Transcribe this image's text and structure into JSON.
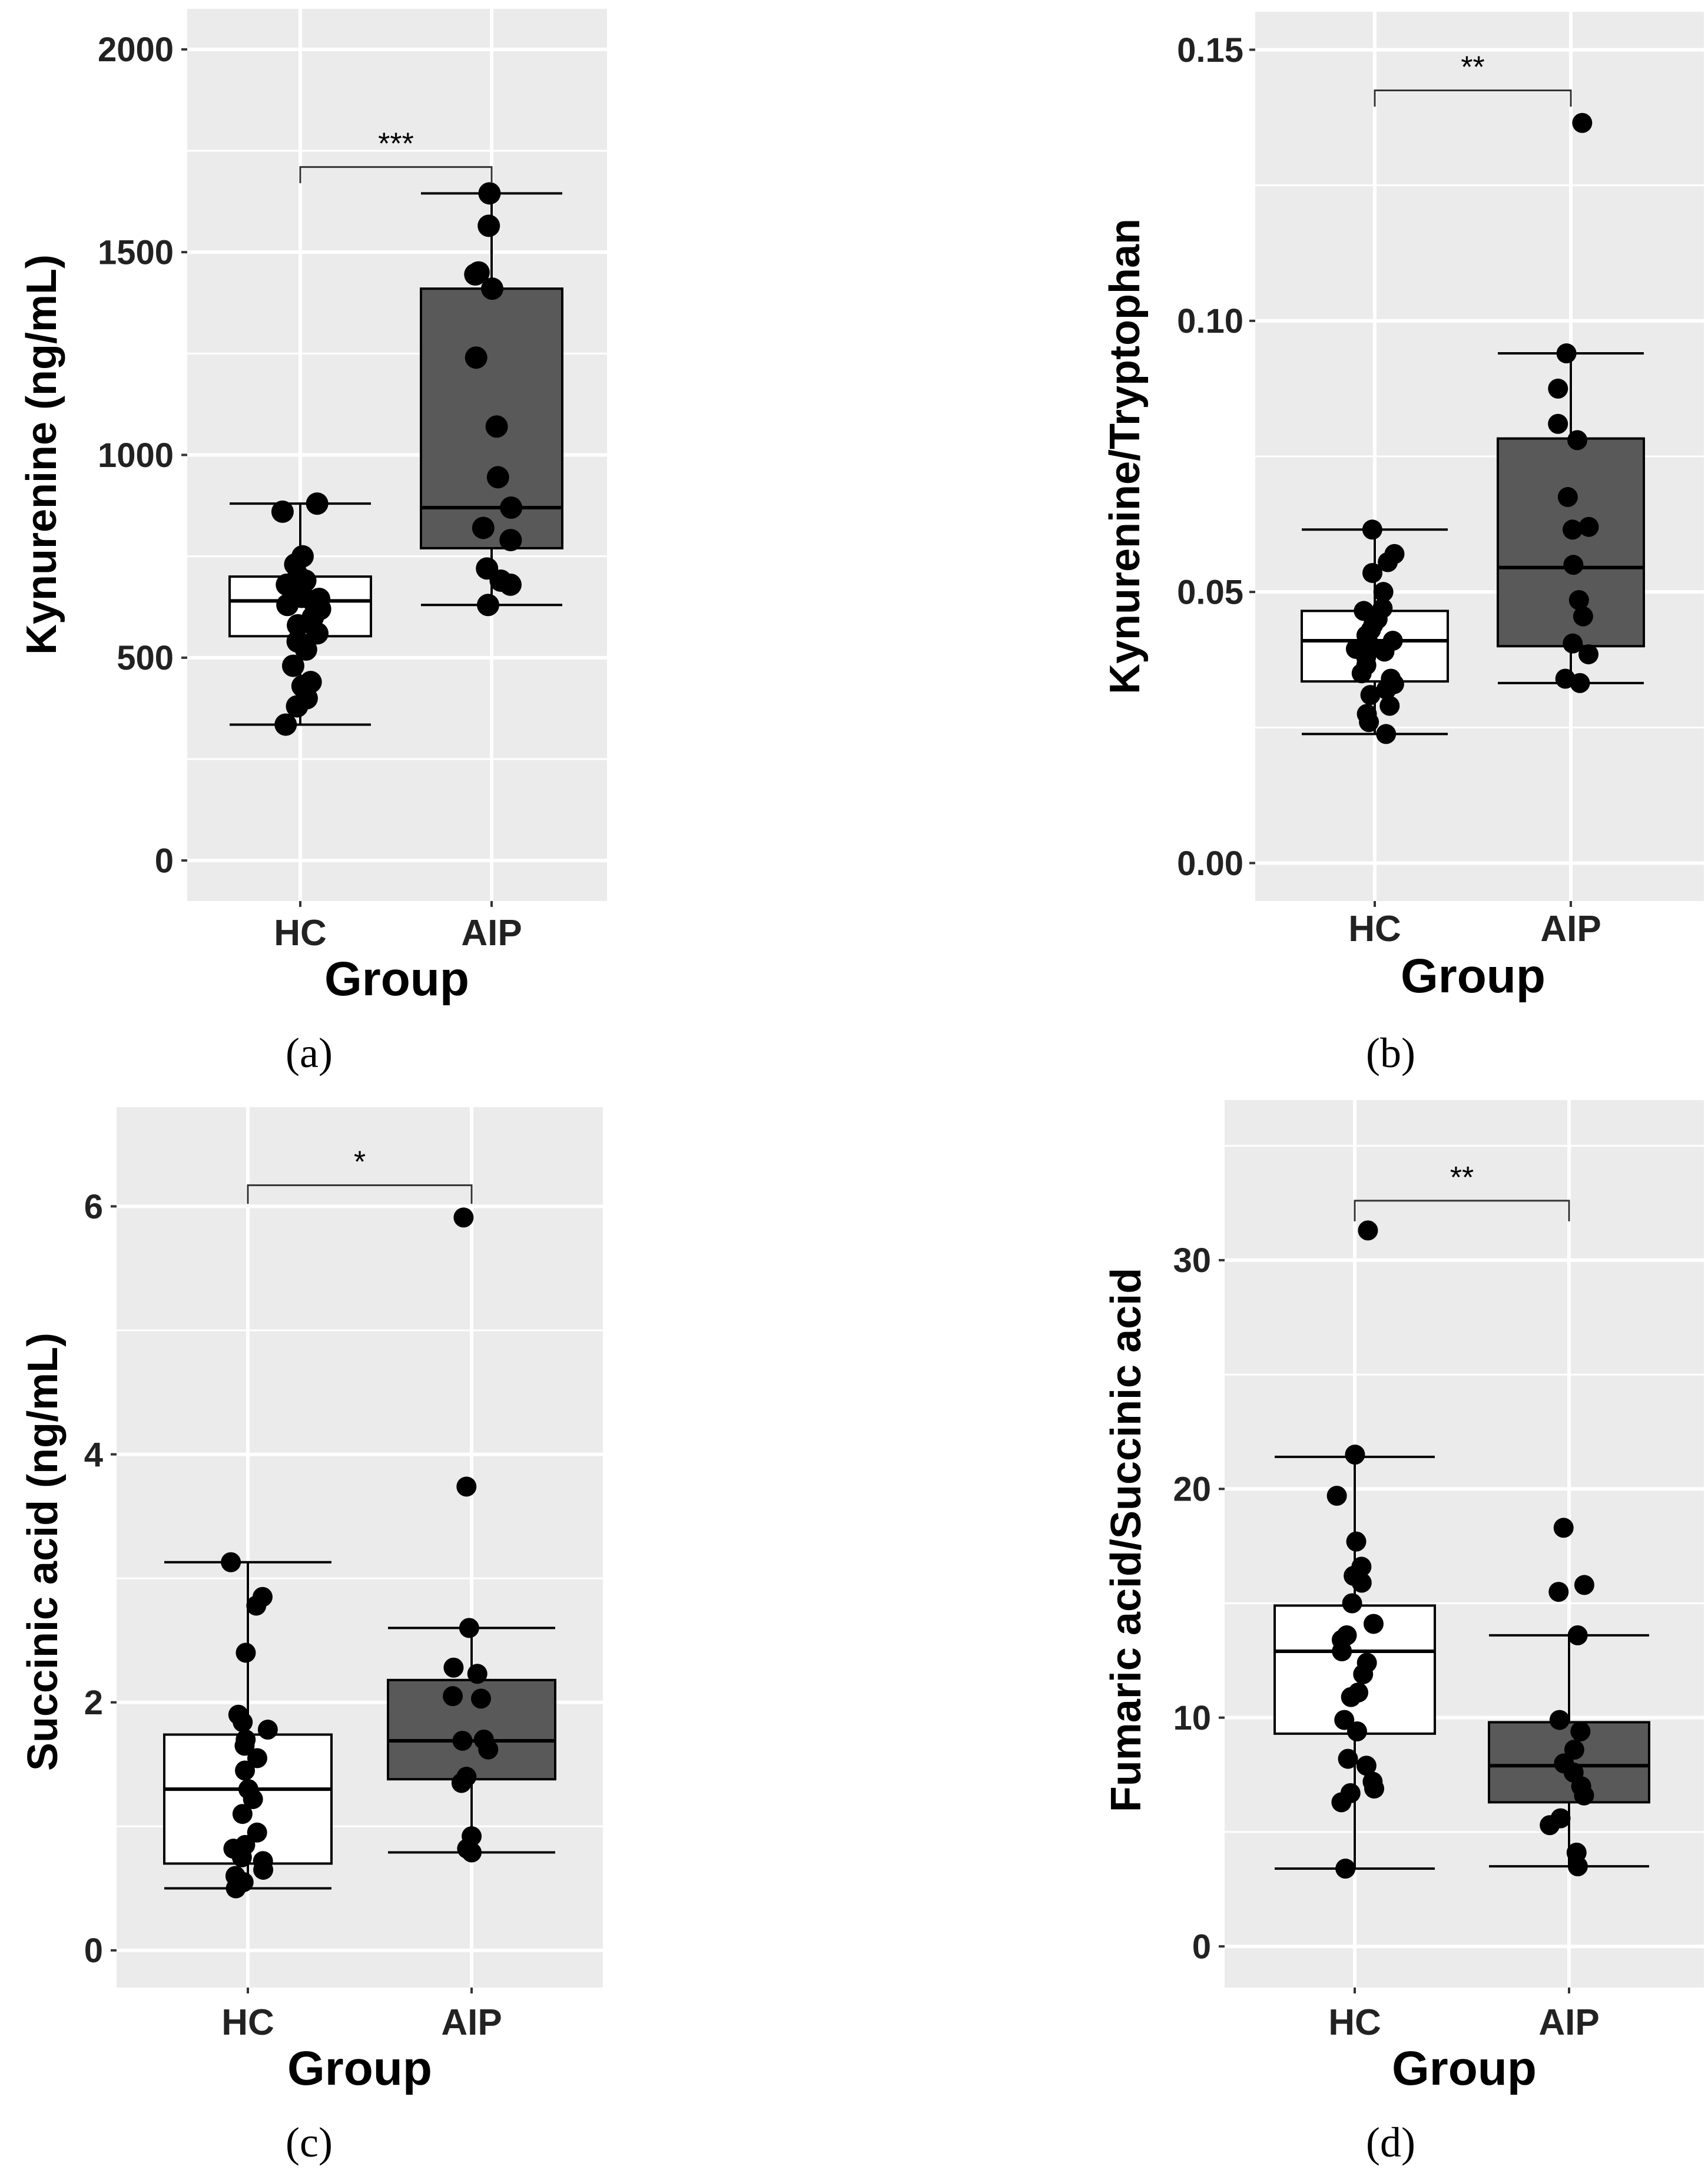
{
  "figure": {
    "panels": [
      {
        "caption": "(a)"
      },
      {
        "caption": "(b)"
      },
      {
        "caption": "(c)"
      },
      {
        "caption": "(d)"
      }
    ]
  },
  "chart_data": [
    {
      "type": "boxplot",
      "panel": "(a)",
      "title": "",
      "xlabel": "Group",
      "ylabel": "Kynurenine (ng/mL)",
      "categories": [
        "HC",
        "AIP"
      ],
      "ylim": [
        -100,
        2100
      ],
      "yticks": [
        0,
        500,
        1000,
        1500,
        2000
      ],
      "ytick_labels": [
        "0",
        "500",
        "1000",
        "1500",
        "2000"
      ],
      "box_fill": {
        "HC": "#ffffff",
        "AIP": "#595959"
      },
      "boxes": [
        {
          "group": "HC",
          "whisker_low": 335,
          "q1": 553,
          "median": 640,
          "q3": 700,
          "whisker_high": 880
        },
        {
          "group": "AIP",
          "whisker_low": 630,
          "q1": 770,
          "median": 870,
          "q3": 1410,
          "whisker_high": 1645
        }
      ],
      "points": {
        "HC": [
          880,
          860,
          750,
          730,
          700,
          690,
          680,
          660,
          650,
          645,
          640,
          630,
          620,
          600,
          580,
          560,
          540,
          520,
          480,
          440,
          430,
          400,
          380,
          335
        ],
        "AIP": [
          1645,
          1565,
          1450,
          1445,
          1410,
          1240,
          1070,
          945,
          870,
          820,
          790,
          720,
          690,
          680,
          630
        ]
      },
      "significance": {
        "label": "***",
        "y": 1710,
        "tip_bottom": 1670
      }
    },
    {
      "type": "boxplot",
      "panel": "(b)",
      "title": "",
      "xlabel": "Group",
      "ylabel": "Kynurenine/Tryptophan",
      "categories": [
        "HC",
        "AIP"
      ],
      "ylim": [
        -0.007,
        0.157
      ],
      "yticks": [
        0,
        0.05,
        0.1,
        0.15
      ],
      "ytick_labels": [
        "0.00",
        "0.05",
        "0.10",
        "0.15"
      ],
      "box_fill": {
        "HC": "#ffffff",
        "AIP": "#595959"
      },
      "boxes": [
        {
          "group": "HC",
          "whisker_low": 0.0238,
          "q1": 0.0335,
          "median": 0.041,
          "q3": 0.0465,
          "whisker_high": 0.0615
        },
        {
          "group": "AIP",
          "whisker_low": 0.0332,
          "q1": 0.04,
          "median": 0.0545,
          "q3": 0.0783,
          "whisker_high": 0.094
        }
      ],
      "points": {
        "HC": [
          0.0615,
          0.057,
          0.0555,
          0.0535,
          0.05,
          0.047,
          0.0465,
          0.045,
          0.044,
          0.043,
          0.042,
          0.041,
          0.04,
          0.0395,
          0.039,
          0.038,
          0.0365,
          0.035,
          0.034,
          0.033,
          0.032,
          0.031,
          0.029,
          0.0275,
          0.026,
          0.0238
        ],
        "AIP": [
          0.1365,
          0.094,
          0.0875,
          0.081,
          0.078,
          0.0675,
          0.062,
          0.0615,
          0.055,
          0.0485,
          0.0455,
          0.0405,
          0.0385,
          0.034,
          0.0332
        ]
      },
      "significance": {
        "label": "**",
        "y": 0.1425,
        "tip_bottom": 0.1395
      }
    },
    {
      "type": "boxplot",
      "panel": "(c)",
      "title": "",
      "xlabel": "Group",
      "ylabel": "Succinic acid (ng/mL)",
      "categories": [
        "HC",
        "AIP"
      ],
      "ylim": [
        -0.3,
        6.8
      ],
      "yticks": [
        0,
        2,
        4,
        6
      ],
      "ytick_labels": [
        "0",
        "2",
        "4",
        "6"
      ],
      "box_fill": {
        "HC": "#ffffff",
        "AIP": "#595959"
      },
      "boxes": [
        {
          "group": "HC",
          "whisker_low": 0.5,
          "q1": 0.7,
          "median": 1.3,
          "q3": 1.74,
          "whisker_high": 3.13
        },
        {
          "group": "AIP",
          "whisker_low": 0.79,
          "q1": 1.38,
          "median": 1.69,
          "q3": 2.18,
          "whisker_high": 2.6
        }
      ],
      "points": {
        "HC": [
          3.13,
          2.85,
          2.78,
          2.4,
          1.9,
          1.84,
          1.78,
          1.7,
          1.65,
          1.55,
          1.45,
          1.3,
          1.22,
          1.1,
          0.95,
          0.85,
          0.82,
          0.75,
          0.72,
          0.65,
          0.6,
          0.55,
          0.5
        ],
        "AIP": [
          5.91,
          3.74,
          2.6,
          2.28,
          2.23,
          2.05,
          2.03,
          1.7,
          1.69,
          1.62,
          1.4,
          1.35,
          0.92,
          0.82,
          0.79
        ]
      },
      "significance": {
        "label": "*",
        "y": 6.17,
        "tip_bottom": 6.02
      }
    },
    {
      "type": "boxplot",
      "panel": "(d)",
      "title": "",
      "xlabel": "Group",
      "ylabel": "Fumaric acid/Succinic acid",
      "categories": [
        "HC",
        "AIP"
      ],
      "ylim": [
        -1.8,
        37
      ],
      "yticks": [
        0,
        10,
        20,
        30
      ],
      "ytick_labels": [
        "0",
        "10",
        "20",
        "30"
      ],
      "box_fill": {
        "HC": "#ffffff",
        "AIP": "#595959"
      },
      "boxes": [
        {
          "group": "HC",
          "whisker_low": 3.4,
          "q1": 9.3,
          "median": 12.9,
          "q3": 14.9,
          "whisker_high": 21.4
        },
        {
          "group": "AIP",
          "whisker_low": 3.5,
          "q1": 6.3,
          "median": 7.9,
          "q3": 9.8,
          "whisker_high": 13.6
        }
      ],
      "points": {
        "HC": [
          31.3,
          21.5,
          19.7,
          17.7,
          16.6,
          16.2,
          15.9,
          15.0,
          14.1,
          13.6,
          13.4,
          12.9,
          12.4,
          11.9,
          11.1,
          10.9,
          9.9,
          9.4,
          8.2,
          7.9,
          7.2,
          6.9,
          6.7,
          6.3,
          3.4
        ],
        "AIP": [
          18.3,
          15.8,
          15.5,
          13.6,
          9.9,
          9.4,
          8.6,
          8.0,
          7.6,
          7.0,
          6.6,
          5.6,
          5.3,
          4.1,
          3.5
        ]
      },
      "significance": {
        "label": "**",
        "y": 32.6,
        "tip_bottom": 31.7
      }
    }
  ]
}
